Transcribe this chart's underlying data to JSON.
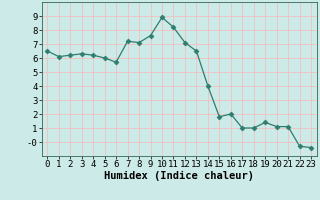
{
  "x": [
    0,
    1,
    2,
    3,
    4,
    5,
    6,
    7,
    8,
    9,
    10,
    11,
    12,
    13,
    14,
    15,
    16,
    17,
    18,
    19,
    20,
    21,
    22,
    23
  ],
  "y": [
    6.5,
    6.1,
    6.2,
    6.3,
    6.2,
    6.0,
    5.7,
    7.2,
    7.1,
    7.6,
    8.9,
    8.2,
    7.1,
    6.5,
    4.0,
    1.8,
    2.0,
    1.0,
    1.0,
    1.4,
    1.1,
    1.1,
    -0.3,
    -0.4
  ],
  "line_color": "#2e7d6e",
  "marker": "D",
  "marker_size": 2.5,
  "background_color": "#cceae7",
  "grid_color": "#f0c0c0",
  "xlabel": "Humidex (Indice chaleur)",
  "ylim": [
    -1,
    10
  ],
  "xlim": [
    -0.5,
    23.5
  ],
  "yticks": [
    0,
    1,
    2,
    3,
    4,
    5,
    6,
    7,
    8,
    9
  ],
  "xticks": [
    0,
    1,
    2,
    3,
    4,
    5,
    6,
    7,
    8,
    9,
    10,
    11,
    12,
    13,
    14,
    15,
    16,
    17,
    18,
    19,
    20,
    21,
    22,
    23
  ],
  "xlabel_fontsize": 7.5,
  "tick_fontsize": 6.5
}
